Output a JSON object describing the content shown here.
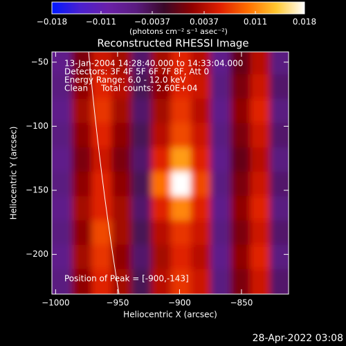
{
  "chart_data": {
    "type": "heatmap",
    "title": "Reconstructed RHESSI Image",
    "xlabel": "Heliocentric X (arcsec)",
    "ylabel": "Heliocentric Y (arcsec)",
    "colorbar_label": "(photons cm⁻² s⁻¹ asec⁻²)",
    "annotations": [
      "13-Jan-2004 14:28:40.000 to 14:33:04.000",
      "Detectors: 3F 4F 5F 6F 7F 8F, Att 0",
      "Energy Range: 6.0 - 12.0 keV",
      "Clean     Total counts: 2.60E+04"
    ],
    "peak_text": "Position of Peak = [-900,-143]",
    "footer": "28-Apr-2022 03:08",
    "xlim": [
      -1003,
      -812
    ],
    "ylim": [
      -231,
      -42
    ],
    "xticks": [
      {
        "value": -1000,
        "label": "−1000"
      },
      {
        "value": -950,
        "label": "−950"
      },
      {
        "value": -900,
        "label": "−900"
      },
      {
        "value": -850,
        "label": "−850"
      }
    ],
    "yticks": [
      {
        "value": -50,
        "label": "−50"
      },
      {
        "value": -100,
        "label": "−100"
      },
      {
        "value": -150,
        "label": "−150"
      },
      {
        "value": -200,
        "label": "−200"
      }
    ],
    "clim": [
      -0.018,
      0.018
    ],
    "cticks": [
      {
        "value": -0.018,
        "label": "−0.018"
      },
      {
        "value": -0.011,
        "label": "−0.011"
      },
      {
        "value": -0.0037,
        "label": "−0.0037"
      },
      0.0037,
      0.011,
      0.018
    ],
    "colormap": [
      "#0018ff",
      "#4a20d0",
      "#6a20a8",
      "#5a1c80",
      "#3a0828",
      "#900000",
      "#e02000",
      "#ff7000",
      "#ffc830",
      "#ffffff"
    ],
    "x": [
      -995,
      -979,
      -963,
      -947,
      -931,
      -915,
      -899,
      -883,
      -867,
      -851,
      -835,
      -819
    ],
    "y": [
      -50,
      -69,
      -88,
      -107,
      -126,
      -145,
      -164,
      -183,
      -202,
      -221
    ],
    "z": [
      [
        -0.007,
        0.001,
        0.005,
        0.003,
        -0.005,
        0.003,
        0.006,
        0.004,
        -0.007,
        0.0,
        0.004,
        -0.006
      ],
      [
        -0.006,
        0.002,
        0.006,
        0.004,
        -0.004,
        0.002,
        0.006,
        0.005,
        -0.006,
        0.001,
        0.005,
        -0.005
      ],
      [
        -0.007,
        0.003,
        0.007,
        0.003,
        -0.005,
        0.003,
        0.007,
        0.004,
        -0.007,
        0.002,
        0.006,
        -0.006
      ],
      [
        -0.006,
        0.002,
        0.006,
        0.002,
        -0.004,
        0.004,
        0.008,
        0.005,
        -0.006,
        0.001,
        0.005,
        -0.005
      ],
      [
        -0.007,
        0.001,
        0.005,
        0.001,
        -0.005,
        0.006,
        0.012,
        0.006,
        -0.007,
        0.0,
        0.004,
        -0.006
      ],
      [
        -0.006,
        0.002,
        0.006,
        0.002,
        -0.004,
        0.01,
        0.018,
        0.008,
        -0.006,
        0.001,
        0.005,
        -0.005
      ],
      [
        -0.007,
        0.003,
        0.006,
        0.003,
        -0.005,
        0.006,
        0.011,
        0.006,
        -0.007,
        0.002,
        0.006,
        -0.006
      ],
      [
        -0.006,
        0.002,
        0.008,
        0.003,
        -0.004,
        0.004,
        0.007,
        0.005,
        -0.006,
        0.001,
        0.005,
        -0.005
      ],
      [
        -0.007,
        0.003,
        0.007,
        0.002,
        -0.005,
        0.003,
        0.006,
        0.004,
        -0.007,
        0.002,
        0.006,
        -0.006
      ],
      [
        -0.006,
        0.002,
        0.006,
        0.003,
        -0.004,
        0.004,
        0.007,
        0.005,
        -0.006,
        0.001,
        0.005,
        -0.005
      ]
    ]
  }
}
